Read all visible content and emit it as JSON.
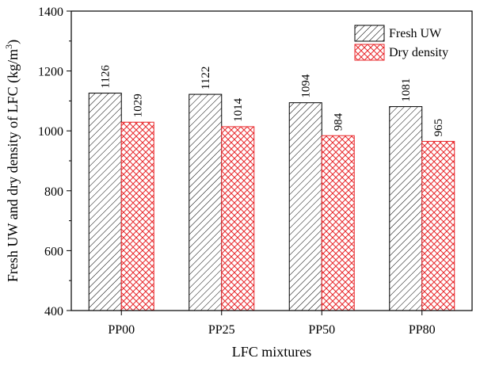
{
  "chart_data": {
    "type": "bar",
    "categories": [
      "PP00",
      "PP25",
      "PP50",
      "PP80"
    ],
    "series": [
      {
        "name": "Fresh UW",
        "values": [
          1126,
          1122,
          1094,
          1081
        ],
        "color": "#000000",
        "pattern": "diagonal-hatch"
      },
      {
        "name": "Dry density",
        "values": [
          1029,
          1014,
          984,
          965
        ],
        "color": "#e8262a",
        "pattern": "crosshatch"
      }
    ],
    "data_labels": [
      [
        "1126",
        "1122",
        "1094",
        "1081"
      ],
      [
        "1029",
        "1014",
        "984",
        "965"
      ]
    ],
    "title": "",
    "xlabel": "LFC mixtures",
    "ylabel_main": "Fresh UW and dry density of LFC (kg/m",
    "ylabel_sup": "3",
    "ylabel_close": ")",
    "ylim": [
      400,
      1400
    ],
    "yticks": [
      400,
      600,
      800,
      1000,
      1200,
      1400
    ],
    "ytick_labels": [
      "400",
      "600",
      "800",
      "1000",
      "1200",
      "1400"
    ],
    "grid": false,
    "legend_position": "top-right"
  }
}
